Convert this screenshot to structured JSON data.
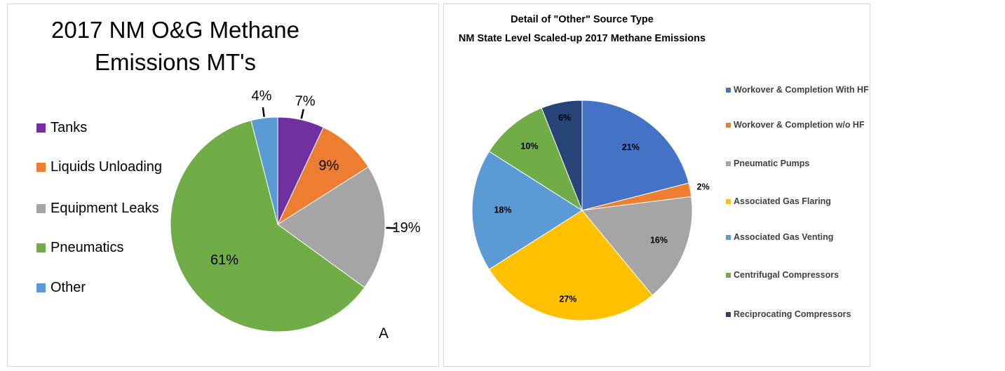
{
  "chart_data": [
    {
      "type": "pie",
      "title": "2017 NM O&G Methane Emissions MT's",
      "annotation": "A",
      "categories": [
        "Tanks",
        "Liquids Unloading",
        "Equipment Leaks",
        "Pneumatics",
        "Other"
      ],
      "values": [
        7,
        9,
        19,
        61,
        4
      ],
      "value_labels": [
        "7%",
        "9%",
        "19%",
        "61%",
        "4%"
      ],
      "colors": [
        "#7030a0",
        "#ed7d31",
        "#a5a5a5",
        "#70ad47",
        "#5b9bd5"
      ]
    },
    {
      "type": "pie",
      "title": "Detail of \"Other\" Source Type",
      "subtitle": "NM State Level Scaled-up 2017 Methane Emissions",
      "categories": [
        "Workover & Completion With HF",
        "Workover & Completion w/o HF",
        "Pneumatic Pumps",
        "Associated Gas Flaring",
        "Associated Gas Venting",
        "Centrifugal Compressors",
        "Reciprocating Compressors"
      ],
      "values": [
        21,
        2,
        16,
        27,
        18,
        10,
        6
      ],
      "value_labels": [
        "21%",
        "2%",
        "16%",
        "27%",
        "18%",
        "10%",
        "6%"
      ],
      "colors": [
        "#4472c4",
        "#ed7d31",
        "#a5a5a5",
        "#ffc000",
        "#5b9bd5",
        "#70ad47",
        "#264478"
      ]
    }
  ]
}
